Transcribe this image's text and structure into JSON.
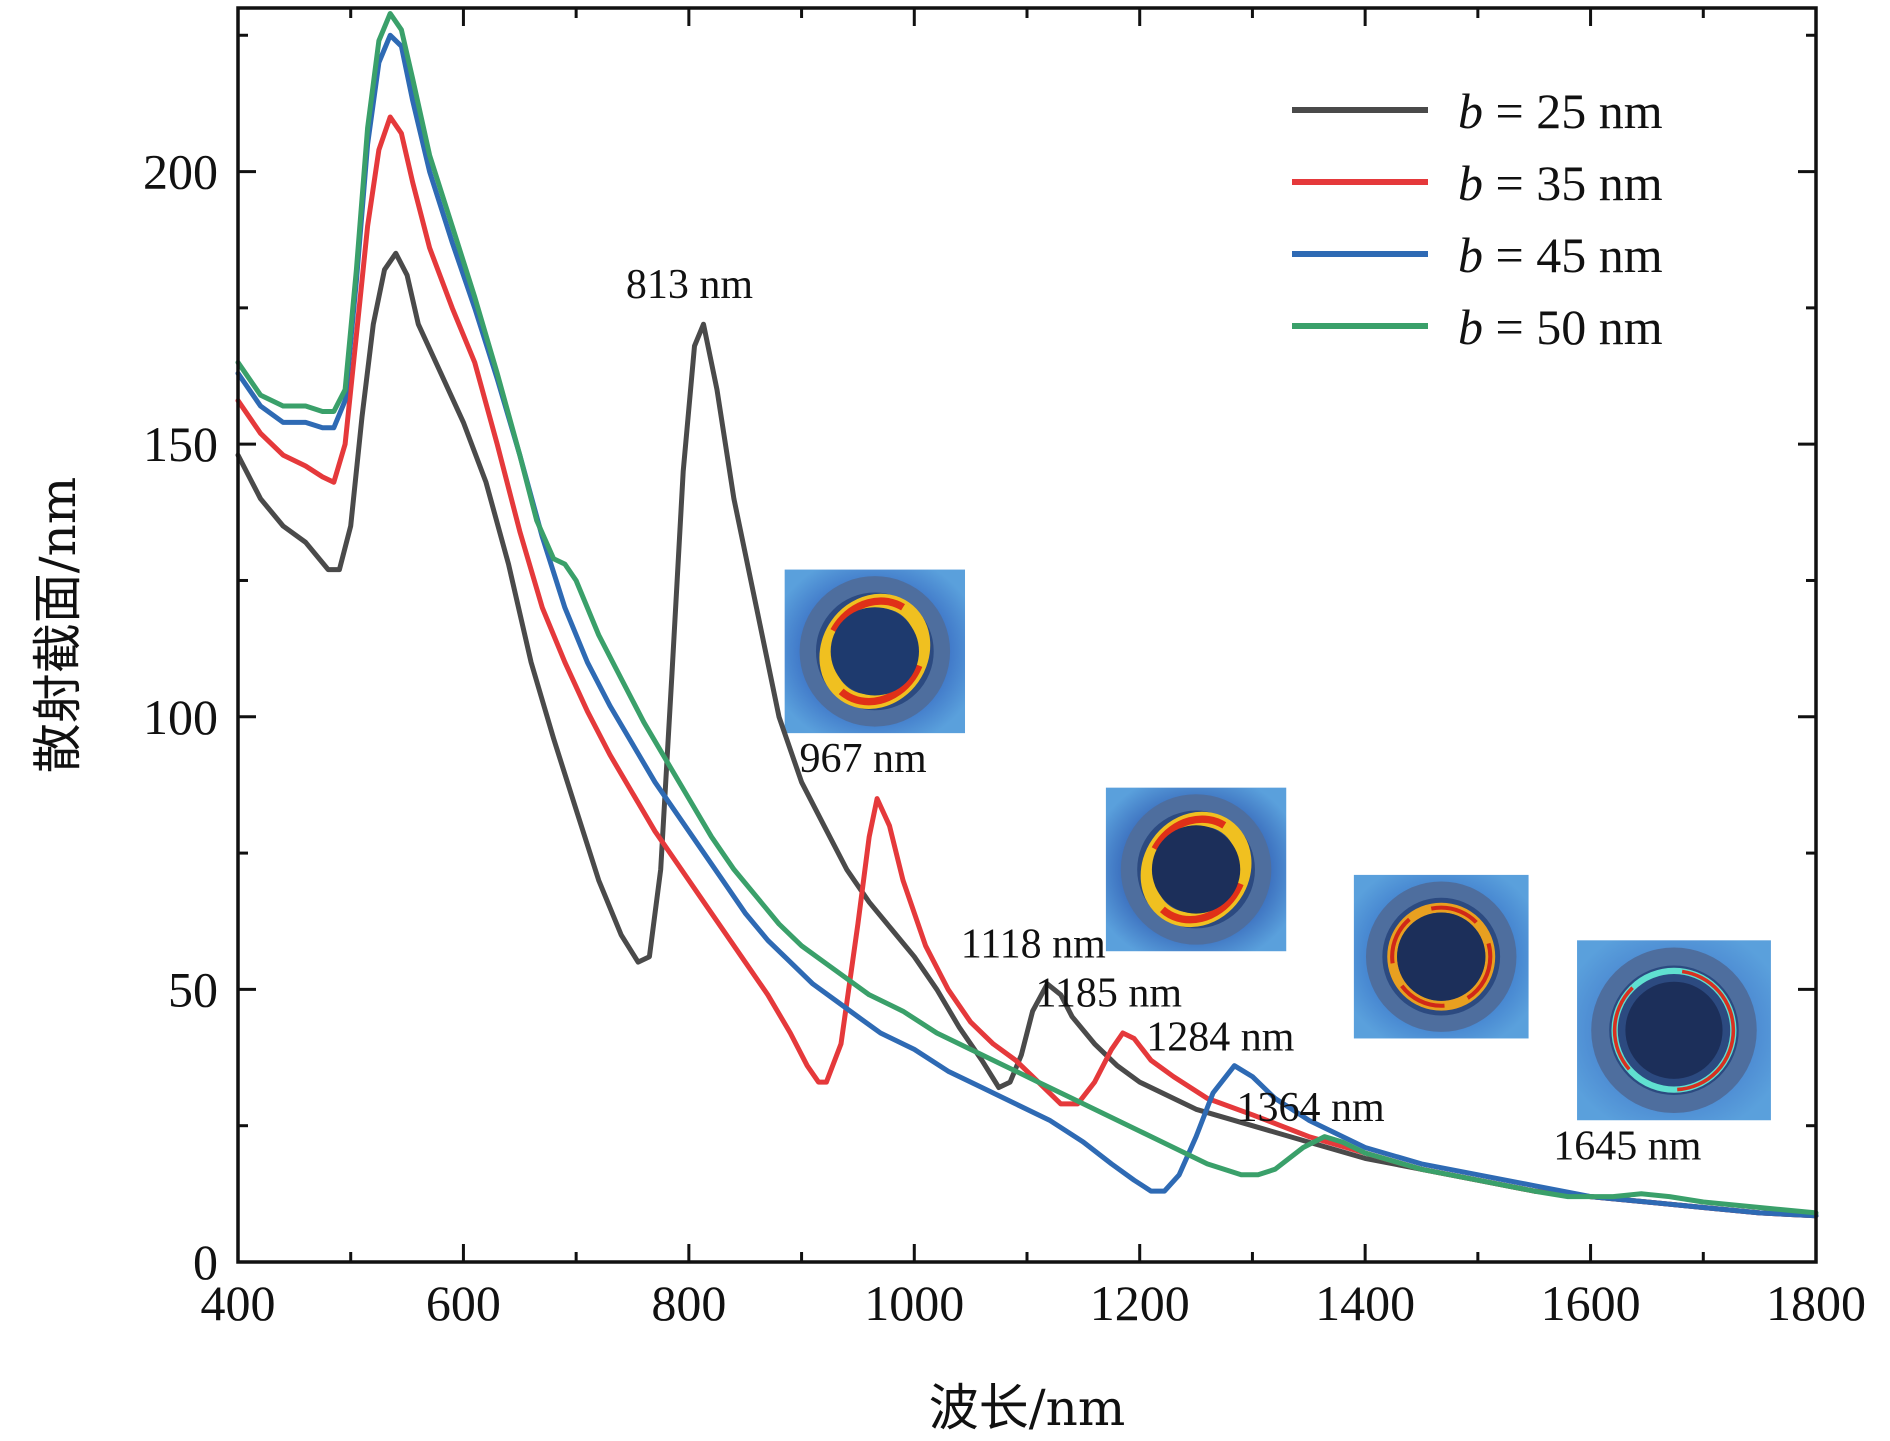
{
  "chart_data": {
    "type": "line",
    "title": "",
    "xlabel": "波长/nm",
    "ylabel": "散射截面/nm",
    "xlim": [
      400,
      1800
    ],
    "ylim": [
      0,
      230
    ],
    "xticks": [
      400,
      600,
      800,
      1000,
      1200,
      1400,
      1600,
      1800
    ],
    "yticks": [
      0,
      50,
      100,
      150,
      200
    ],
    "legend_position": "top-right",
    "colors": {
      "axis": "#111111",
      "map_bg": "#3a6fc4",
      "map_core": "#1e3a6e",
      "map_shell": "#46689a"
    },
    "series": [
      {
        "name": "b = 25 nm",
        "var": "b",
        "rest": " = 25 nm",
        "color": "#4a4a4a",
        "points": [
          [
            400,
            148
          ],
          [
            420,
            140
          ],
          [
            440,
            135
          ],
          [
            460,
            132
          ],
          [
            480,
            127
          ],
          [
            490,
            127
          ],
          [
            500,
            135
          ],
          [
            510,
            155
          ],
          [
            520,
            172
          ],
          [
            530,
            182
          ],
          [
            540,
            185
          ],
          [
            550,
            181
          ],
          [
            560,
            172
          ],
          [
            580,
            163
          ],
          [
            600,
            154
          ],
          [
            620,
            143
          ],
          [
            640,
            128
          ],
          [
            660,
            110
          ],
          [
            680,
            96
          ],
          [
            700,
            83
          ],
          [
            720,
            70
          ],
          [
            740,
            60
          ],
          [
            755,
            55
          ],
          [
            765,
            56
          ],
          [
            775,
            72
          ],
          [
            785,
            108
          ],
          [
            795,
            145
          ],
          [
            805,
            168
          ],
          [
            813,
            172
          ],
          [
            825,
            160
          ],
          [
            840,
            140
          ],
          [
            860,
            120
          ],
          [
            880,
            100
          ],
          [
            900,
            88
          ],
          [
            920,
            80
          ],
          [
            940,
            72
          ],
          [
            960,
            66
          ],
          [
            980,
            61
          ],
          [
            1000,
            56
          ],
          [
            1020,
            50
          ],
          [
            1040,
            43
          ],
          [
            1060,
            37
          ],
          [
            1075,
            32
          ],
          [
            1085,
            33
          ],
          [
            1095,
            38
          ],
          [
            1105,
            46
          ],
          [
            1118,
            51
          ],
          [
            1130,
            49
          ],
          [
            1140,
            45
          ],
          [
            1160,
            40
          ],
          [
            1180,
            36
          ],
          [
            1200,
            33
          ],
          [
            1250,
            28
          ],
          [
            1300,
            25
          ],
          [
            1350,
            22
          ],
          [
            1400,
            19
          ],
          [
            1450,
            17
          ],
          [
            1500,
            15
          ],
          [
            1550,
            13
          ],
          [
            1600,
            12
          ],
          [
            1650,
            11
          ],
          [
            1700,
            10
          ],
          [
            1750,
            9
          ],
          [
            1800,
            8.5
          ]
        ]
      },
      {
        "name": "b = 35 nm",
        "var": "b",
        "rest": " = 35 nm",
        "color": "#e5393b",
        "points": [
          [
            400,
            158
          ],
          [
            420,
            152
          ],
          [
            440,
            148
          ],
          [
            460,
            146
          ],
          [
            475,
            144
          ],
          [
            485,
            143
          ],
          [
            495,
            150
          ],
          [
            505,
            170
          ],
          [
            515,
            190
          ],
          [
            525,
            204
          ],
          [
            535,
            210
          ],
          [
            545,
            207
          ],
          [
            555,
            198
          ],
          [
            570,
            186
          ],
          [
            590,
            175
          ],
          [
            610,
            165
          ],
          [
            630,
            150
          ],
          [
            650,
            134
          ],
          [
            670,
            120
          ],
          [
            690,
            110
          ],
          [
            710,
            101
          ],
          [
            730,
            93
          ],
          [
            750,
            86
          ],
          [
            770,
            79
          ],
          [
            790,
            73
          ],
          [
            810,
            67
          ],
          [
            830,
            61
          ],
          [
            850,
            55
          ],
          [
            870,
            49
          ],
          [
            890,
            42
          ],
          [
            905,
            36
          ],
          [
            915,
            33
          ],
          [
            922,
            33
          ],
          [
            935,
            40
          ],
          [
            950,
            62
          ],
          [
            960,
            78
          ],
          [
            967,
            85
          ],
          [
            978,
            80
          ],
          [
            990,
            70
          ],
          [
            1010,
            58
          ],
          [
            1030,
            50
          ],
          [
            1050,
            44
          ],
          [
            1070,
            40
          ],
          [
            1090,
            37
          ],
          [
            1110,
            33
          ],
          [
            1130,
            29
          ],
          [
            1145,
            29
          ],
          [
            1160,
            33
          ],
          [
            1175,
            39
          ],
          [
            1185,
            42
          ],
          [
            1195,
            41
          ],
          [
            1210,
            37
          ],
          [
            1230,
            34
          ],
          [
            1260,
            30
          ],
          [
            1300,
            27
          ],
          [
            1350,
            23
          ],
          [
            1400,
            20
          ],
          [
            1450,
            17
          ],
          [
            1500,
            15
          ],
          [
            1550,
            13
          ],
          [
            1600,
            12
          ],
          [
            1650,
            11
          ],
          [
            1700,
            10
          ],
          [
            1750,
            9
          ],
          [
            1800,
            8.5
          ]
        ]
      },
      {
        "name": "b = 45 nm",
        "var": "b",
        "rest": " = 45 nm",
        "color": "#2e6ab4",
        "points": [
          [
            400,
            163
          ],
          [
            420,
            157
          ],
          [
            440,
            154
          ],
          [
            460,
            154
          ],
          [
            475,
            153
          ],
          [
            485,
            153
          ],
          [
            495,
            158
          ],
          [
            505,
            180
          ],
          [
            515,
            205
          ],
          [
            525,
            220
          ],
          [
            535,
            225
          ],
          [
            545,
            223
          ],
          [
            555,
            213
          ],
          [
            570,
            200
          ],
          [
            590,
            187
          ],
          [
            610,
            175
          ],
          [
            630,
            162
          ],
          [
            650,
            148
          ],
          [
            670,
            133
          ],
          [
            690,
            120
          ],
          [
            710,
            110
          ],
          [
            730,
            102
          ],
          [
            750,
            95
          ],
          [
            770,
            88
          ],
          [
            790,
            82
          ],
          [
            810,
            76
          ],
          [
            830,
            70
          ],
          [
            850,
            64
          ],
          [
            870,
            59
          ],
          [
            890,
            55
          ],
          [
            910,
            51
          ],
          [
            930,
            48
          ],
          [
            950,
            45
          ],
          [
            970,
            42
          ],
          [
            1000,
            39
          ],
          [
            1030,
            35
          ],
          [
            1060,
            32
          ],
          [
            1090,
            29
          ],
          [
            1120,
            26
          ],
          [
            1150,
            22
          ],
          [
            1175,
            18
          ],
          [
            1195,
            15
          ],
          [
            1210,
            13
          ],
          [
            1222,
            13
          ],
          [
            1235,
            16
          ],
          [
            1250,
            23
          ],
          [
            1265,
            31
          ],
          [
            1284,
            36
          ],
          [
            1300,
            34
          ],
          [
            1320,
            30
          ],
          [
            1350,
            26
          ],
          [
            1380,
            23
          ],
          [
            1400,
            21
          ],
          [
            1450,
            18
          ],
          [
            1500,
            16
          ],
          [
            1550,
            14
          ],
          [
            1600,
            12
          ],
          [
            1650,
            11
          ],
          [
            1700,
            10
          ],
          [
            1750,
            9
          ],
          [
            1800,
            8.5
          ]
        ]
      },
      {
        "name": "b = 50 nm",
        "var": "b",
        "rest": " = 50 nm",
        "color": "#3aa06a",
        "points": [
          [
            400,
            165
          ],
          [
            420,
            159
          ],
          [
            440,
            157
          ],
          [
            460,
            157
          ],
          [
            475,
            156
          ],
          [
            485,
            156
          ],
          [
            495,
            160
          ],
          [
            505,
            182
          ],
          [
            515,
            208
          ],
          [
            525,
            224
          ],
          [
            535,
            229
          ],
          [
            545,
            226
          ],
          [
            555,
            217
          ],
          [
            570,
            203
          ],
          [
            590,
            190
          ],
          [
            610,
            177
          ],
          [
            630,
            163
          ],
          [
            650,
            148
          ],
          [
            665,
            136
          ],
          [
            680,
            129
          ],
          [
            690,
            128
          ],
          [
            700,
            125
          ],
          [
            720,
            115
          ],
          [
            740,
            107
          ],
          [
            760,
            99
          ],
          [
            780,
            92
          ],
          [
            800,
            85
          ],
          [
            820,
            78
          ],
          [
            840,
            72
          ],
          [
            860,
            67
          ],
          [
            880,
            62
          ],
          [
            900,
            58
          ],
          [
            920,
            55
          ],
          [
            940,
            52
          ],
          [
            960,
            49
          ],
          [
            990,
            46
          ],
          [
            1020,
            42
          ],
          [
            1050,
            39
          ],
          [
            1080,
            36
          ],
          [
            1110,
            33
          ],
          [
            1140,
            30
          ],
          [
            1170,
            27
          ],
          [
            1200,
            24
          ],
          [
            1230,
            21
          ],
          [
            1260,
            18
          ],
          [
            1290,
            16
          ],
          [
            1305,
            16
          ],
          [
            1320,
            17
          ],
          [
            1345,
            21
          ],
          [
            1364,
            23
          ],
          [
            1380,
            22
          ],
          [
            1400,
            20
          ],
          [
            1450,
            17
          ],
          [
            1500,
            15
          ],
          [
            1550,
            13
          ],
          [
            1580,
            12
          ],
          [
            1620,
            12
          ],
          [
            1645,
            12.5
          ],
          [
            1670,
            12
          ],
          [
            1700,
            11
          ],
          [
            1750,
            10
          ],
          [
            1800,
            9
          ]
        ]
      }
    ],
    "annotations": [
      {
        "text": "813 nm",
        "x": 813,
        "y": 175
      },
      {
        "text": "967 nm",
        "x": 967,
        "y": 88
      },
      {
        "text": "1118 nm",
        "x": 1118,
        "y": 54
      },
      {
        "text": "1185 nm",
        "x": 1185,
        "y": 45
      },
      {
        "text": "1284 nm",
        "x": 1284,
        "y": 37
      },
      {
        "text": "1364 nm",
        "x": 1364,
        "y": 24
      },
      {
        "text": "1645 nm",
        "x": 1645,
        "y": 17
      }
    ],
    "insets": [
      {
        "name": "field-map-967-nm",
        "x0": 885,
        "x1": 1045,
        "y0": 97,
        "y1": 127,
        "pattern": "tilted",
        "bg": "#3a6fc4",
        "core": "#1e3a6e"
      },
      {
        "name": "field-map-1118-nm",
        "x0": 1170,
        "x1": 1330,
        "y0": 57,
        "y1": 87,
        "pattern": "tilted",
        "bg": "#3565b8",
        "core": "#1c2f5a"
      },
      {
        "name": "field-map-1284-nm",
        "x0": 1390,
        "x1": 1545,
        "y0": 41,
        "y1": 71,
        "pattern": "ring",
        "bg": "#3f7ccc",
        "core": "#1c2f5a"
      },
      {
        "name": "field-map-1645-nm",
        "x0": 1588,
        "x1": 1760,
        "y0": 26,
        "y1": 59,
        "pattern": "thin-ring",
        "bg": "#4a86d0",
        "core": "#1c2f5a"
      }
    ]
  }
}
